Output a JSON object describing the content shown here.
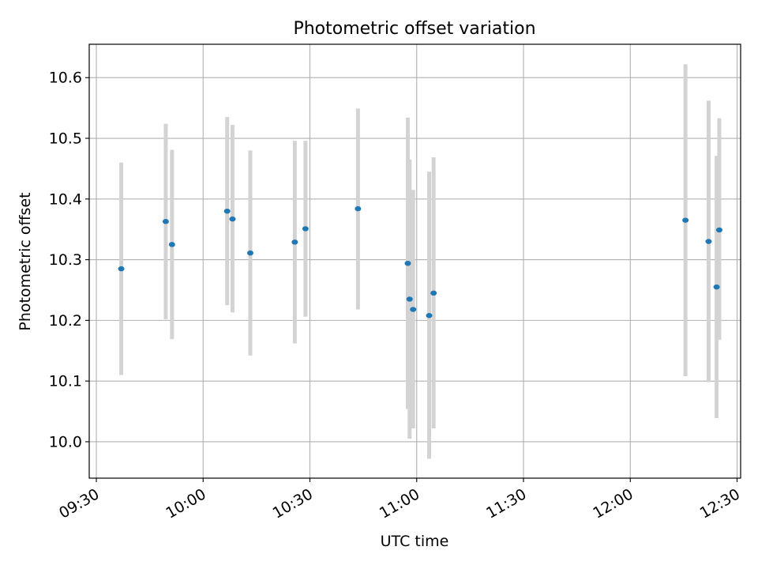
{
  "chart_data": {
    "type": "scatter",
    "title": "Photometric offset variation",
    "xlabel": "UTC time",
    "ylabel": "Photometric offset",
    "grid": true,
    "xlim": [
      "09:28",
      "12:31"
    ],
    "ylim": [
      9.94,
      10.655
    ],
    "x_ticks": [
      "09:30",
      "10:00",
      "10:30",
      "11:00",
      "11:30",
      "12:00",
      "12:30"
    ],
    "y_ticks": [
      "10.0",
      "10.1",
      "10.2",
      "10.3",
      "10.4",
      "10.5",
      "10.6"
    ],
    "points": [
      {
        "time": "09:37:00",
        "y": 10.285,
        "ylow": 10.11,
        "yhigh": 10.46
      },
      {
        "time": "09:49:30",
        "y": 10.363,
        "ylow": 10.202,
        "yhigh": 10.524
      },
      {
        "time": "09:51:15",
        "y": 10.325,
        "ylow": 10.169,
        "yhigh": 10.481
      },
      {
        "time": "10:06:45",
        "y": 10.38,
        "ylow": 10.225,
        "yhigh": 10.535
      },
      {
        "time": "10:08:15",
        "y": 10.367,
        "ylow": 10.213,
        "yhigh": 10.522
      },
      {
        "time": "10:13:15",
        "y": 10.311,
        "ylow": 10.142,
        "yhigh": 10.48
      },
      {
        "time": "10:25:45",
        "y": 10.329,
        "ylow": 10.162,
        "yhigh": 10.496
      },
      {
        "time": "10:28:45",
        "y": 10.351,
        "ylow": 10.206,
        "yhigh": 10.496
      },
      {
        "time": "10:43:30",
        "y": 10.384,
        "ylow": 10.218,
        "yhigh": 10.549
      },
      {
        "time": "10:57:30",
        "y": 10.294,
        "ylow": 10.054,
        "yhigh": 10.534
      },
      {
        "time": "10:58:00",
        "y": 10.235,
        "ylow": 10.005,
        "yhigh": 10.465
      },
      {
        "time": "10:59:00",
        "y": 10.218,
        "ylow": 10.022,
        "yhigh": 10.415
      },
      {
        "time": "11:03:30",
        "y": 10.208,
        "ylow": 9.972,
        "yhigh": 10.445
      },
      {
        "time": "11:04:45",
        "y": 10.245,
        "ylow": 10.022,
        "yhigh": 10.469
      },
      {
        "time": "12:15:30",
        "y": 10.365,
        "ylow": 10.108,
        "yhigh": 10.622
      },
      {
        "time": "12:22:00",
        "y": 10.33,
        "ylow": 10.098,
        "yhigh": 10.562
      },
      {
        "time": "12:24:15",
        "y": 10.255,
        "ylow": 10.039,
        "yhigh": 10.471
      },
      {
        "time": "12:25:00",
        "y": 10.349,
        "ylow": 10.168,
        "yhigh": 10.533
      }
    ],
    "marker_color": "#1f77b4",
    "errorbar_color": "#d3d3d3",
    "grid_color": "#b0b0b0"
  }
}
